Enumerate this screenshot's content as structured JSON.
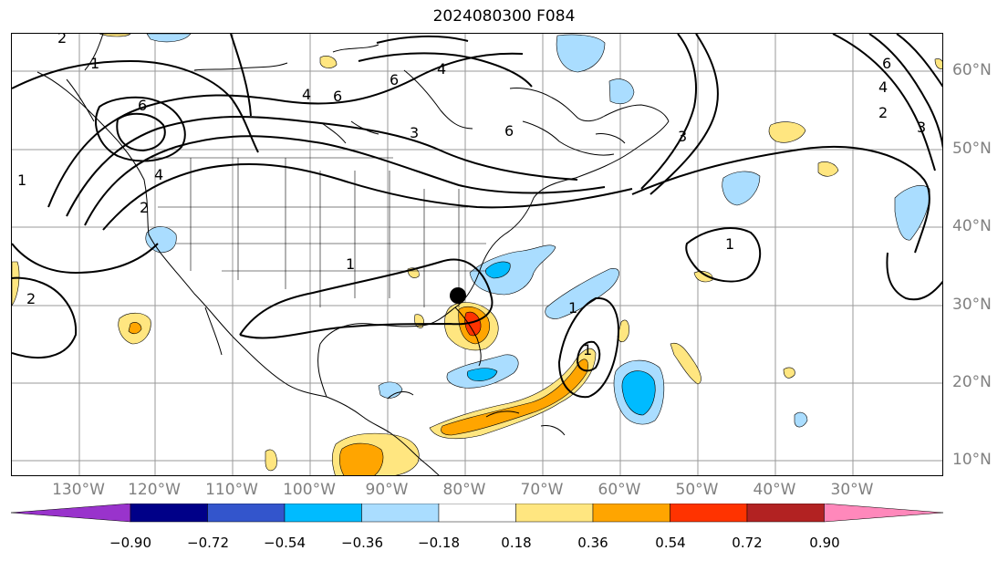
{
  "title": "2024080300 F084",
  "lon_labels": [
    "130°W",
    "120°W",
    "110°W",
    "100°W",
    "90°W",
    "80°W",
    "70°W",
    "60°W",
    "50°W",
    "40°W",
    "30°W"
  ],
  "lat_labels": [
    "60°N",
    "50°N",
    "40°N",
    "30°N",
    "20°N",
    "10°N"
  ],
  "colorbar": {
    "ticks": [
      "−0.90",
      "−0.72",
      "−0.54",
      "−0.36",
      "−0.18",
      "0.18",
      "0.36",
      "0.54",
      "0.72",
      "0.90"
    ],
    "colors": [
      "#9933cc",
      "#000088",
      "#3355cc",
      "#00bbff",
      "#aaddff",
      "#ffffff",
      "#ffe680",
      "#ffa500",
      "#ff3300",
      "#b22222",
      "#ff88bb"
    ]
  },
  "contour_labels": [
    "1",
    "6",
    "4",
    "2",
    "1",
    "6",
    "6",
    "6",
    "4",
    "3",
    "6",
    "4",
    "2",
    "3",
    "3",
    "1",
    "2",
    "1",
    "1",
    "1",
    "2",
    "4"
  ],
  "hurricane_marker": "storm-position"
}
